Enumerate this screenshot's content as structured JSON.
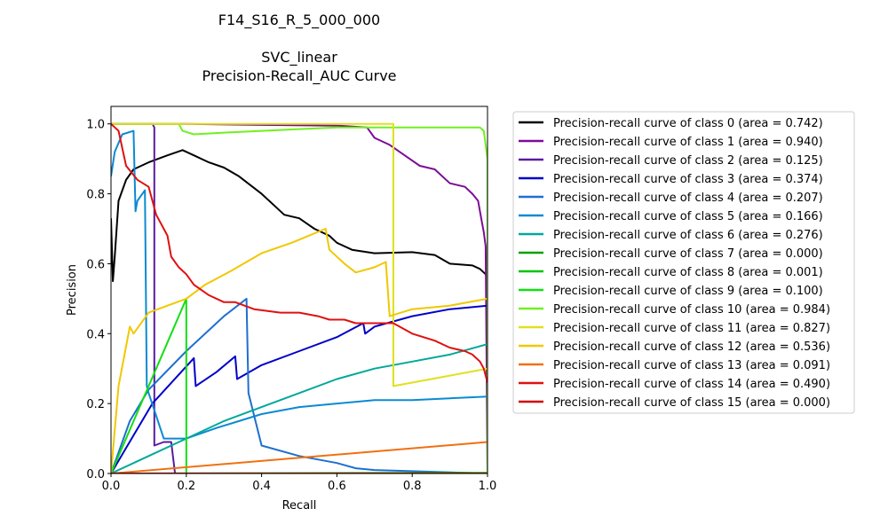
{
  "chart_data": {
    "type": "line",
    "title_lines": [
      "F14_S16_R_5_000_000",
      "",
      "SVC_linear",
      "Precision-Recall_AUC Curve"
    ],
    "xlabel": "Recall",
    "ylabel": "Precision",
    "xlim": [
      0.0,
      1.0
    ],
    "ylim": [
      0.0,
      1.05
    ],
    "xticks": [
      "0.0",
      "0.2",
      "0.4",
      "0.6",
      "0.8",
      "1.0"
    ],
    "yticks": [
      "0.0",
      "0.2",
      "0.4",
      "0.6",
      "0.8",
      "1.0"
    ],
    "grid": false,
    "legend_position": "outside-right",
    "series": [
      {
        "name": "Precision-recall curve of class 0 (area = 0.742)",
        "color": "#000000",
        "points": [
          [
            0,
            0.73
          ],
          [
            0.005,
            0.55
          ],
          [
            0.01,
            0.62
          ],
          [
            0.02,
            0.78
          ],
          [
            0.04,
            0.84
          ],
          [
            0.06,
            0.87
          ],
          [
            0.1,
            0.89
          ],
          [
            0.15,
            0.91
          ],
          [
            0.19,
            0.925
          ],
          [
            0.22,
            0.91
          ],
          [
            0.26,
            0.89
          ],
          [
            0.3,
            0.875
          ],
          [
            0.34,
            0.85
          ],
          [
            0.4,
            0.8
          ],
          [
            0.44,
            0.76
          ],
          [
            0.46,
            0.74
          ],
          [
            0.5,
            0.73
          ],
          [
            0.54,
            0.7
          ],
          [
            0.58,
            0.68
          ],
          [
            0.6,
            0.66
          ],
          [
            0.64,
            0.64
          ],
          [
            0.7,
            0.63
          ],
          [
            0.8,
            0.633
          ],
          [
            0.86,
            0.625
          ],
          [
            0.9,
            0.6
          ],
          [
            0.96,
            0.595
          ],
          [
            0.98,
            0.585
          ],
          [
            0.995,
            0.57
          ],
          [
            1.0,
            0.55
          ]
        ]
      },
      {
        "name": "Precision-recall curve of class 1 (area = 0.940)",
        "color": "#7b0d96",
        "points": [
          [
            0,
            1.0
          ],
          [
            0.2,
            1.0
          ],
          [
            0.4,
            0.997
          ],
          [
            0.6,
            0.995
          ],
          [
            0.68,
            0.99
          ],
          [
            0.7,
            0.96
          ],
          [
            0.74,
            0.94
          ],
          [
            0.78,
            0.91
          ],
          [
            0.82,
            0.88
          ],
          [
            0.86,
            0.87
          ],
          [
            0.9,
            0.83
          ],
          [
            0.94,
            0.82
          ],
          [
            0.96,
            0.8
          ],
          [
            0.975,
            0.78
          ],
          [
            0.985,
            0.72
          ],
          [
            0.99,
            0.69
          ],
          [
            0.995,
            0.65
          ],
          [
            1.0,
            0.0
          ]
        ]
      },
      {
        "name": "Precision-recall curve of class 2 (area = 0.125)",
        "color": "#5a1aa0",
        "points": [
          [
            0,
            1.0
          ],
          [
            0.11,
            1.0
          ],
          [
            0.115,
            0.99
          ],
          [
            0.115,
            0.08
          ],
          [
            0.14,
            0.09
          ],
          [
            0.16,
            0.09
          ],
          [
            0.17,
            0.0
          ],
          [
            1.0,
            0.0
          ]
        ]
      },
      {
        "name": "Precision-recall curve of class 3 (area = 0.374)",
        "color": "#0000c8",
        "points": [
          [
            0,
            0.0
          ],
          [
            0.11,
            0.2
          ],
          [
            0.22,
            0.33
          ],
          [
            0.225,
            0.25
          ],
          [
            0.28,
            0.29
          ],
          [
            0.33,
            0.335
          ],
          [
            0.335,
            0.27
          ],
          [
            0.4,
            0.31
          ],
          [
            0.5,
            0.35
          ],
          [
            0.6,
            0.39
          ],
          [
            0.67,
            0.43
          ],
          [
            0.675,
            0.4
          ],
          [
            0.7,
            0.42
          ],
          [
            0.8,
            0.45
          ],
          [
            0.9,
            0.47
          ],
          [
            1.0,
            0.48
          ]
        ]
      },
      {
        "name": "Precision-recall curve of class 4 (area = 0.207)",
        "color": "#1e6fd0",
        "points": [
          [
            0,
            0.0
          ],
          [
            0.05,
            0.15
          ],
          [
            0.1,
            0.24
          ],
          [
            0.2,
            0.35
          ],
          [
            0.3,
            0.45
          ],
          [
            0.36,
            0.5
          ],
          [
            0.365,
            0.23
          ],
          [
            0.4,
            0.08
          ],
          [
            0.5,
            0.05
          ],
          [
            0.6,
            0.03
          ],
          [
            0.65,
            0.015
          ],
          [
            0.7,
            0.01
          ],
          [
            1.0,
            0.0
          ]
        ]
      },
      {
        "name": "Precision-recall curve of class 5 (area = 0.166)",
        "color": "#0b8ad1",
        "points": [
          [
            0,
            0.85
          ],
          [
            0.01,
            0.92
          ],
          [
            0.03,
            0.97
          ],
          [
            0.06,
            0.98
          ],
          [
            0.065,
            0.75
          ],
          [
            0.07,
            0.78
          ],
          [
            0.09,
            0.81
          ],
          [
            0.095,
            0.25
          ],
          [
            0.1,
            0.23
          ],
          [
            0.14,
            0.1
          ],
          [
            0.2,
            0.1
          ],
          [
            0.28,
            0.13
          ],
          [
            0.4,
            0.17
          ],
          [
            0.5,
            0.19
          ],
          [
            0.6,
            0.2
          ],
          [
            0.7,
            0.21
          ],
          [
            0.8,
            0.21
          ],
          [
            0.9,
            0.215
          ],
          [
            1.0,
            0.22
          ]
        ]
      },
      {
        "name": "Precision-recall curve of class 6 (area = 0.276)",
        "color": "#00a89a",
        "points": [
          [
            0,
            0.0
          ],
          [
            0.1,
            0.05
          ],
          [
            0.2,
            0.1
          ],
          [
            0.3,
            0.15
          ],
          [
            0.4,
            0.19
          ],
          [
            0.5,
            0.23
          ],
          [
            0.6,
            0.27
          ],
          [
            0.7,
            0.3
          ],
          [
            0.8,
            0.32
          ],
          [
            0.9,
            0.34
          ],
          [
            1.0,
            0.37
          ]
        ]
      },
      {
        "name": "Precision-recall curve of class 7 (area = 0.000)",
        "color": "#00a000",
        "points": [
          [
            0,
            0.0
          ],
          [
            1.0,
            0.0
          ]
        ]
      },
      {
        "name": "Precision-recall curve of class 8 (area = 0.001)",
        "color": "#00c400",
        "points": [
          [
            0,
            0.0
          ],
          [
            0.5,
            0.001
          ],
          [
            1.0,
            0.002
          ]
        ]
      },
      {
        "name": "Precision-recall curve of class 9 (area = 0.100)",
        "color": "#10e010",
        "points": [
          [
            0,
            0.0
          ],
          [
            0.2,
            0.5
          ],
          [
            0.2,
            0.0
          ],
          [
            1.0,
            0.0
          ]
        ]
      },
      {
        "name": "Precision-recall curve of class 10 (area = 0.984)",
        "color": "#70f020",
        "points": [
          [
            0,
            1.0
          ],
          [
            0.18,
            1.0
          ],
          [
            0.19,
            0.98
          ],
          [
            0.22,
            0.97
          ],
          [
            0.3,
            0.975
          ],
          [
            0.4,
            0.98
          ],
          [
            0.5,
            0.985
          ],
          [
            0.6,
            0.99
          ],
          [
            0.8,
            0.99
          ],
          [
            0.98,
            0.99
          ],
          [
            0.99,
            0.98
          ],
          [
            1.0,
            0.9
          ],
          [
            1.0,
            0.0
          ]
        ]
      },
      {
        "name": "Precision-recall curve of class 11 (area = 0.827)",
        "color": "#e0e020",
        "points": [
          [
            0,
            1.0
          ],
          [
            0.6,
            1.0
          ],
          [
            0.75,
            1.0
          ],
          [
            0.75,
            0.25
          ],
          [
            0.8,
            0.26
          ],
          [
            0.9,
            0.28
          ],
          [
            1.0,
            0.3
          ]
        ]
      },
      {
        "name": "Precision-recall curve of class 12 (area = 0.536)",
        "color": "#f0c800",
        "points": [
          [
            0,
            0.0
          ],
          [
            0.02,
            0.25
          ],
          [
            0.05,
            0.42
          ],
          [
            0.06,
            0.4
          ],
          [
            0.1,
            0.46
          ],
          [
            0.15,
            0.48
          ],
          [
            0.2,
            0.5
          ],
          [
            0.25,
            0.54
          ],
          [
            0.32,
            0.58
          ],
          [
            0.4,
            0.63
          ],
          [
            0.48,
            0.66
          ],
          [
            0.57,
            0.7
          ],
          [
            0.58,
            0.64
          ],
          [
            0.62,
            0.6
          ],
          [
            0.65,
            0.575
          ],
          [
            0.7,
            0.59
          ],
          [
            0.73,
            0.605
          ],
          [
            0.74,
            0.45
          ],
          [
            0.8,
            0.47
          ],
          [
            0.9,
            0.48
          ],
          [
            1.0,
            0.5
          ]
        ]
      },
      {
        "name": "Precision-recall curve of class 13 (area = 0.091)",
        "color": "#f07010",
        "points": [
          [
            0,
            0.0
          ],
          [
            0.5,
            0.045
          ],
          [
            1.0,
            0.09
          ]
        ]
      },
      {
        "name": "Precision-recall curve of class 14 (area = 0.490)",
        "color": "#e01010",
        "points": [
          [
            0,
            1.0
          ],
          [
            0.02,
            0.98
          ],
          [
            0.04,
            0.88
          ],
          [
            0.07,
            0.84
          ],
          [
            0.1,
            0.82
          ],
          [
            0.12,
            0.74
          ],
          [
            0.14,
            0.7
          ],
          [
            0.15,
            0.68
          ],
          [
            0.16,
            0.62
          ],
          [
            0.18,
            0.59
          ],
          [
            0.2,
            0.57
          ],
          [
            0.22,
            0.54
          ],
          [
            0.26,
            0.51
          ],
          [
            0.3,
            0.49
          ],
          [
            0.33,
            0.49
          ],
          [
            0.38,
            0.47
          ],
          [
            0.45,
            0.46
          ],
          [
            0.5,
            0.46
          ],
          [
            0.55,
            0.45
          ],
          [
            0.58,
            0.44
          ],
          [
            0.62,
            0.44
          ],
          [
            0.65,
            0.43
          ],
          [
            0.7,
            0.43
          ],
          [
            0.75,
            0.43
          ],
          [
            0.8,
            0.4
          ],
          [
            0.86,
            0.38
          ],
          [
            0.9,
            0.36
          ],
          [
            0.94,
            0.35
          ],
          [
            0.96,
            0.34
          ],
          [
            0.98,
            0.32
          ],
          [
            0.99,
            0.3
          ],
          [
            1.0,
            0.26
          ]
        ]
      },
      {
        "name": "Precision-recall curve of class 15 (area = 0.000)",
        "color": "#d00000",
        "points": [
          [
            0,
            0.0
          ],
          [
            1.0,
            0.0
          ]
        ]
      }
    ]
  }
}
